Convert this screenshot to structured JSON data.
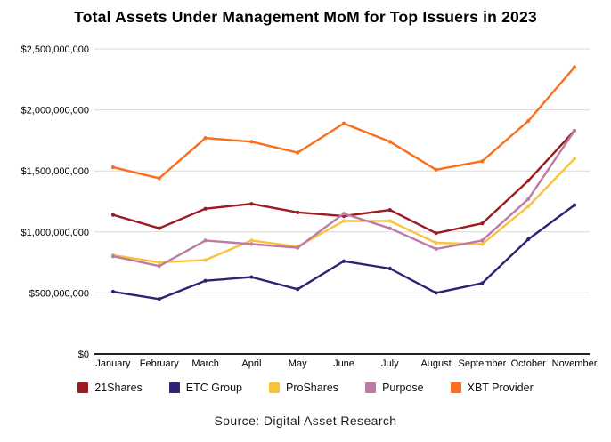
{
  "title": "Total Assets Under Management MoM for Top Issuers in 2023",
  "source": "Source: Digital Asset Research",
  "colors": {
    "grid": "#d9d9d9",
    "axis": "#000000",
    "series_21shares": "#9b1c20",
    "series_etc_group": "#2e2274",
    "series_proshares": "#f9c33c",
    "series_purpose": "#bc7aa4",
    "series_xbt_provider": "#f96f1d"
  },
  "chart_data": {
    "type": "line",
    "title": "Total Assets Under Management MoM for Top Issuers in 2023",
    "xlabel": "",
    "ylabel": "",
    "ylim": [
      0,
      2500000000
    ],
    "grid": "horizontal",
    "legend_position": "bottom",
    "categories": [
      "January",
      "February",
      "March",
      "April",
      "May",
      "June",
      "July",
      "August",
      "September",
      "October",
      "November"
    ],
    "y_ticks": [
      "$0",
      "$500,000,000",
      "$1,000,000,000",
      "$1,500,000,000",
      "$2,000,000,000",
      "$2,500,000,000"
    ],
    "series": [
      {
        "name": "21Shares",
        "color": "#9b1c20",
        "values": [
          1140000000,
          1030000000,
          1190000000,
          1230000000,
          1160000000,
          1130000000,
          1180000000,
          990000000,
          1070000000,
          1420000000,
          1830000000
        ]
      },
      {
        "name": "ETC Group",
        "color": "#2e2274",
        "values": [
          510000000,
          450000000,
          600000000,
          630000000,
          530000000,
          760000000,
          700000000,
          500000000,
          580000000,
          940000000,
          1220000000
        ]
      },
      {
        "name": "ProShares",
        "color": "#f9c33c",
        "values": [
          810000000,
          750000000,
          770000000,
          930000000,
          880000000,
          1090000000,
          1090000000,
          910000000,
          900000000,
          1210000000,
          1600000000
        ]
      },
      {
        "name": "Purpose",
        "color": "#bc7aa4",
        "values": [
          800000000,
          720000000,
          930000000,
          900000000,
          870000000,
          1150000000,
          1030000000,
          860000000,
          930000000,
          1270000000,
          1830000000
        ]
      },
      {
        "name": "XBT Provider",
        "color": "#f96f1d",
        "values": [
          1530000000,
          1440000000,
          1770000000,
          1740000000,
          1650000000,
          1890000000,
          1740000000,
          1510000000,
          1580000000,
          1910000000,
          2350000000
        ]
      }
    ]
  }
}
